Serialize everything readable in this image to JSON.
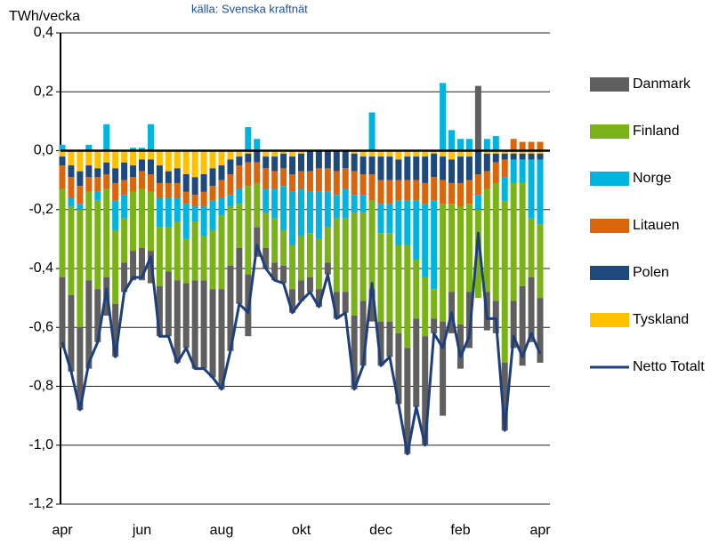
{
  "chart_data": {
    "type": "bar",
    "stacked": true,
    "title": "källa: Svenska kraftnät",
    "y_label": "TWh/vecka",
    "categories": [
      "apr",
      null,
      null,
      null,
      null,
      null,
      null,
      null,
      null,
      "jun",
      null,
      null,
      null,
      null,
      null,
      null,
      null,
      null,
      "aug",
      null,
      null,
      null,
      null,
      null,
      null,
      null,
      null,
      "okt",
      null,
      null,
      null,
      null,
      null,
      null,
      null,
      null,
      "dec",
      null,
      null,
      null,
      null,
      null,
      null,
      null,
      null,
      "feb",
      null,
      null,
      null,
      null,
      null,
      null,
      null,
      null,
      "apr"
    ],
    "ylim": [
      -1.2,
      0.4
    ],
    "yticks": [
      {
        "value": 0.4,
        "label": "0,4"
      },
      {
        "value": 0.2,
        "label": "0,2"
      },
      {
        "value": 0,
        "label": "0,0"
      },
      {
        "value": -0.2,
        "label": "-0,2"
      },
      {
        "value": -0.4,
        "label": "-0,4"
      },
      {
        "value": -0.6,
        "label": "-0,6"
      },
      {
        "value": -0.8,
        "label": "-0,8"
      },
      {
        "value": -1.0,
        "label": "-1,0"
      },
      {
        "value": -1.2,
        "label": "-1,2"
      }
    ],
    "grid": true,
    "legend": "right",
    "series": [
      {
        "name": "Danmark",
        "color": "#5f5f5f",
        "values": [
          -0.24,
          -0.26,
          -0.28,
          -0.3,
          -0.18,
          -0.13,
          -0.18,
          -0.1,
          -0.1,
          -0.11,
          -0.11,
          -0.17,
          -0.22,
          -0.28,
          -0.22,
          -0.3,
          -0.3,
          -0.3,
          -0.34,
          -0.29,
          -0.19,
          -0.21,
          -0.1,
          -0.07,
          -0.06,
          -0.06,
          -0.08,
          -0.07,
          -0.05,
          -0.06,
          -0.04,
          -0.09,
          -0.07,
          -0.25,
          -0.22,
          -0.11,
          -0.15,
          -0.12,
          -0.24,
          -0.36,
          -0.3,
          -0.37,
          -0.05,
          -0.32,
          -0.14,
          -0.15,
          -0.19,
          0.22,
          -0.13,
          -0.11,
          -0.23,
          -0.16,
          -0.27,
          -0.22,
          -0.22
        ]
      },
      {
        "name": "Finland",
        "color": "#7ab317",
        "values": [
          -0.3,
          -0.3,
          -0.4,
          -0.3,
          -0.3,
          -0.3,
          -0.25,
          -0.15,
          -0.2,
          -0.2,
          -0.2,
          -0.2,
          -0.15,
          -0.2,
          -0.15,
          -0.2,
          -0.15,
          -0.2,
          -0.25,
          -0.2,
          -0.15,
          -0.3,
          -0.15,
          -0.12,
          -0.15,
          -0.12,
          -0.15,
          -0.15,
          -0.15,
          -0.17,
          -0.12,
          -0.25,
          -0.25,
          -0.35,
          -0.3,
          -0.3,
          -0.3,
          -0.3,
          -0.3,
          -0.35,
          -0.2,
          -0.2,
          -0.1,
          -0.4,
          -0.3,
          -0.4,
          -0.3,
          -0.3,
          -0.35,
          -0.4,
          -0.55,
          -0.4,
          -0.35,
          -0.2,
          -0.25
        ]
      },
      {
        "name": "Norge",
        "color": "#00b4e0",
        "values": [
          0.02,
          -0.03,
          -0.02,
          0.02,
          -0.03,
          0.09,
          -0.1,
          -0.08,
          0.01,
          0.01,
          0.09,
          -0.1,
          -0.1,
          -0.08,
          -0.12,
          -0.05,
          -0.1,
          -0.1,
          -0.06,
          -0.04,
          -0.05,
          0.08,
          0.04,
          -0.08,
          -0.1,
          -0.15,
          -0.18,
          -0.16,
          -0.14,
          -0.16,
          -0.12,
          -0.08,
          -0.1,
          -0.06,
          -0.06,
          0.13,
          -0.1,
          -0.1,
          -0.15,
          -0.15,
          -0.2,
          -0.25,
          -0.3,
          0.23,
          0.07,
          0.04,
          0.04,
          -0.05,
          0.04,
          0.05,
          -0.08,
          -0.08,
          -0.08,
          -0.2,
          -0.22
        ]
      },
      {
        "name": "Litauen",
        "color": "#d9650c",
        "values": [
          -0.08,
          -0.07,
          -0.06,
          -0.05,
          -0.05,
          -0.05,
          -0.06,
          -0.05,
          -0.05,
          -0.06,
          -0.06,
          -0.05,
          -0.05,
          -0.05,
          -0.04,
          -0.04,
          -0.05,
          -0.05,
          -0.06,
          -0.07,
          -0.08,
          -0.08,
          -0.07,
          -0.07,
          -0.06,
          -0.06,
          -0.06,
          -0.06,
          -0.07,
          -0.08,
          -0.08,
          -0.08,
          -0.07,
          -0.08,
          -0.07,
          -0.09,
          -0.08,
          -0.08,
          -0.07,
          -0.07,
          -0.07,
          -0.07,
          -0.08,
          -0.08,
          -0.07,
          -0.08,
          -0.08,
          -0.07,
          -0.06,
          -0.07,
          -0.06,
          0.04,
          0.03,
          0.03,
          0.03
        ]
      },
      {
        "name": "Polen",
        "color": "#1f497d",
        "values": [
          -0.03,
          -0.04,
          -0.05,
          -0.04,
          -0.03,
          -0.04,
          -0.05,
          -0.06,
          -0.04,
          -0.04,
          -0.05,
          -0.06,
          -0.04,
          -0.05,
          -0.06,
          -0.06,
          -0.06,
          -0.06,
          -0.05,
          -0.05,
          -0.03,
          -0.03,
          -0.04,
          -0.04,
          -0.05,
          -0.05,
          -0.06,
          -0.06,
          -0.07,
          -0.06,
          -0.06,
          -0.07,
          -0.06,
          -0.06,
          -0.06,
          -0.06,
          -0.08,
          -0.08,
          -0.07,
          -0.08,
          -0.08,
          -0.09,
          -0.08,
          -0.08,
          -0.08,
          -0.09,
          -0.08,
          -0.08,
          -0.06,
          -0.03,
          -0.02,
          -0.02,
          -0.02,
          -0.02,
          -0.02
        ]
      },
      {
        "name": "Tyskland",
        "color": "#ffc000",
        "values": [
          -0.02,
          -0.05,
          -0.07,
          -0.05,
          -0.06,
          -0.04,
          -0.06,
          -0.04,
          -0.05,
          -0.03,
          -0.03,
          -0.05,
          -0.07,
          -0.06,
          -0.08,
          -0.09,
          -0.08,
          -0.06,
          -0.05,
          -0.03,
          -0.02,
          -0.01,
          0,
          -0.02,
          -0.02,
          -0.01,
          -0.02,
          -0.01,
          0,
          0,
          0,
          0,
          0,
          -0.01,
          -0.02,
          -0.02,
          -0.02,
          -0.02,
          -0.03,
          -0.02,
          -0.02,
          -0.02,
          -0.01,
          -0.02,
          -0.03,
          -0.02,
          -0.02,
          0,
          -0.01,
          -0.01,
          -0.01,
          -0.01,
          -0.01,
          -0.01,
          -0.01
        ]
      },
      {
        "name": "Netto Totalt",
        "color": "#1f3f7a",
        "type": "line",
        "values": [
          -0.65,
          -0.75,
          -0.88,
          -0.72,
          -0.65,
          -0.47,
          -0.7,
          -0.48,
          -0.43,
          -0.43,
          -0.36,
          -0.63,
          -0.63,
          -0.72,
          -0.67,
          -0.74,
          -0.74,
          -0.77,
          -0.81,
          -0.68,
          -0.52,
          -0.55,
          -0.32,
          -0.4,
          -0.44,
          -0.45,
          -0.55,
          -0.51,
          -0.48,
          -0.53,
          -0.42,
          -0.57,
          -0.55,
          -0.81,
          -0.73,
          -0.45,
          -0.73,
          -0.7,
          -0.86,
          -1.03,
          -0.87,
          -1.0,
          -0.62,
          -0.67,
          -0.55,
          -0.7,
          -0.63,
          -0.28,
          -0.57,
          -0.57,
          -0.95,
          -0.63,
          -0.7,
          -0.62,
          -0.69
        ]
      }
    ]
  }
}
